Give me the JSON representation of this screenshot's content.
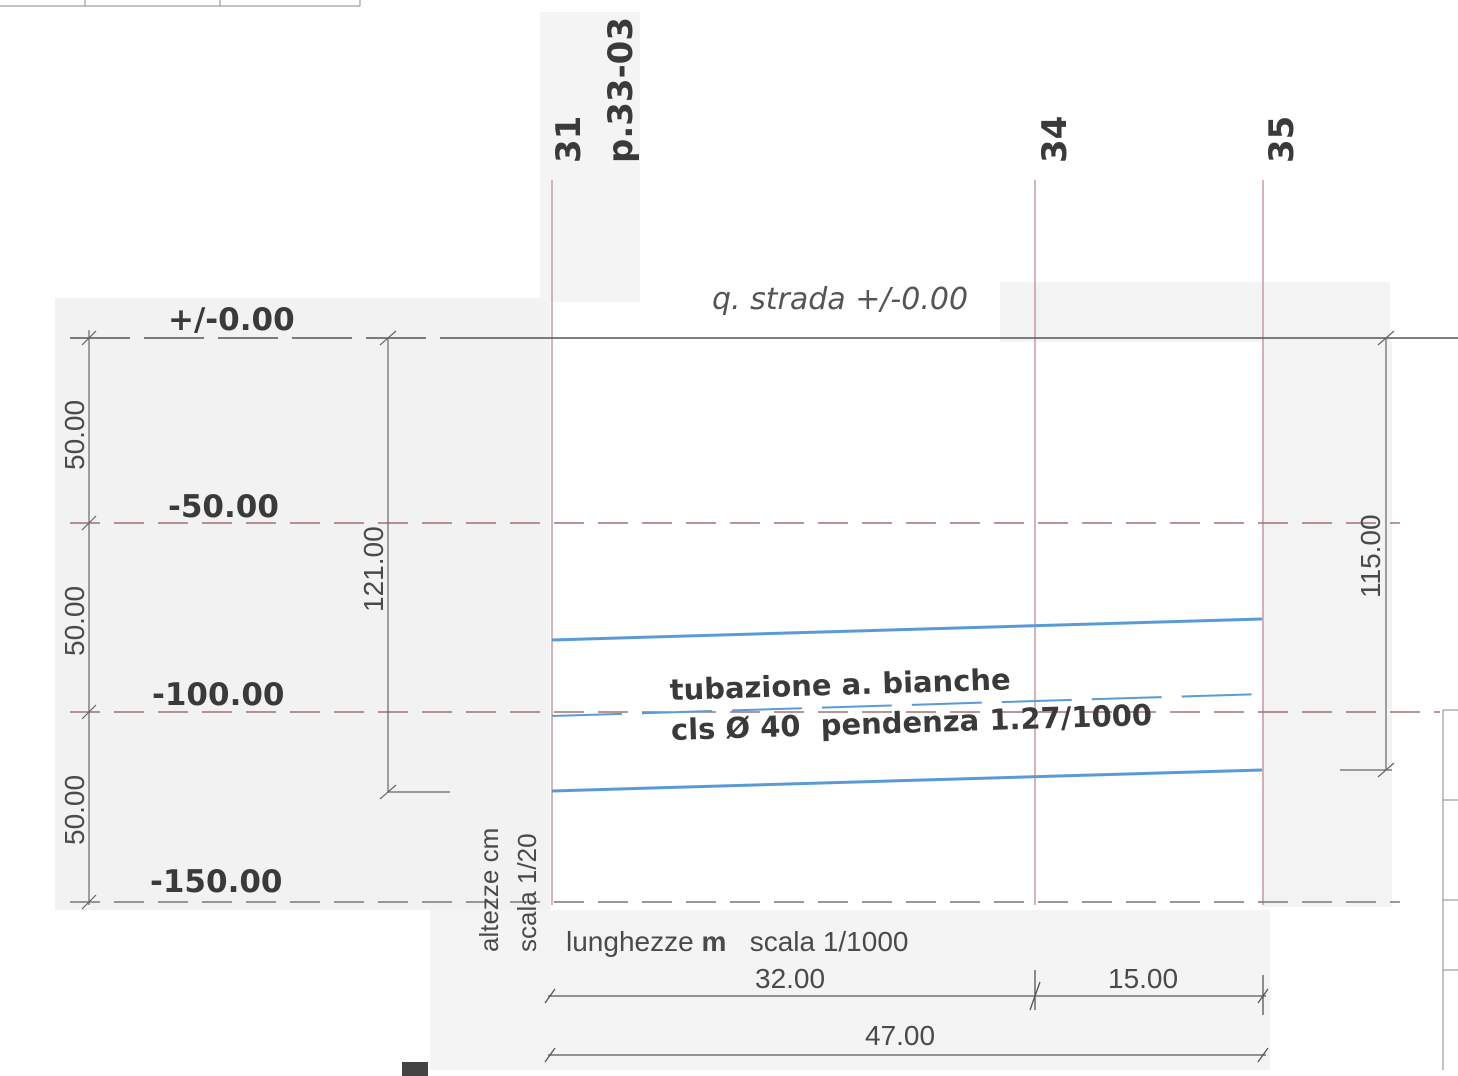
{
  "sections": {
    "s1": "31",
    "s1_plot": "p.33-03",
    "s2": "34",
    "s3": "35"
  },
  "street_label": "q. strada +/-0.00",
  "levels": [
    "+/-0.00",
    "-50.00",
    "-100.00",
    "-150.00"
  ],
  "vertical_intervals": [
    "50.00",
    "50.00",
    "50.00"
  ],
  "depth_left": "121.00",
  "depth_right": "115.00",
  "pipe": {
    "line1": "tubazione a. bianche",
    "line2": "cls Ø 40  pendenza 1.27/1000"
  },
  "height_scale": {
    "line1": "altezze cm",
    "line2": "scala 1/20"
  },
  "length_scale": {
    "label": "lunghezze",
    "unit": "m",
    "scale": "scala 1/1000"
  },
  "distances": {
    "d1": "32.00",
    "d2": "15.00",
    "total": "47.00"
  },
  "colors": {
    "pipe": "#5b9bd5",
    "section_line": "#c9a0a8",
    "grid_dash": "#a07070",
    "shade": "#f1f1f1"
  }
}
